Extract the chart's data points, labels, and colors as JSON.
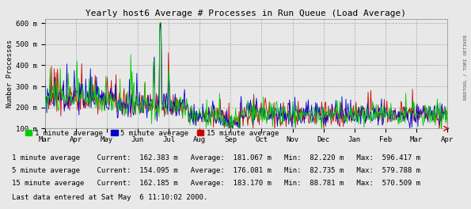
{
  "title": "Yearly host6 Average # Processes in Run Queue (Load Average)",
  "ylabel": "Number Processes",
  "background_color": "#e8e8e8",
  "plot_background": "#e8e8e8",
  "grid_color": "#aaaaaa",
  "ylim": [
    100,
    620
  ],
  "yticks": [
    100,
    200,
    300,
    400,
    500,
    600
  ],
  "ytick_labels": [
    "100 m",
    "200 m",
    "300 m",
    "400 m",
    "500 m",
    "600 m"
  ],
  "x_months": [
    "Mar",
    "Apr",
    "May",
    "Jun",
    "Jul",
    "Aug",
    "Sep",
    "Oct",
    "Nov",
    "Dec",
    "Jan",
    "Feb",
    "Mar",
    "Apr"
  ],
  "color_1min": "#00cc00",
  "color_5min": "#0000cc",
  "color_15min": "#cc0000",
  "line_width": 0.6,
  "legend_items": [
    "1 minute average",
    "5 minute average",
    "15 minute average"
  ],
  "right_label": "RRDTOOL / TOBI OETIKER",
  "n_points": 600
}
